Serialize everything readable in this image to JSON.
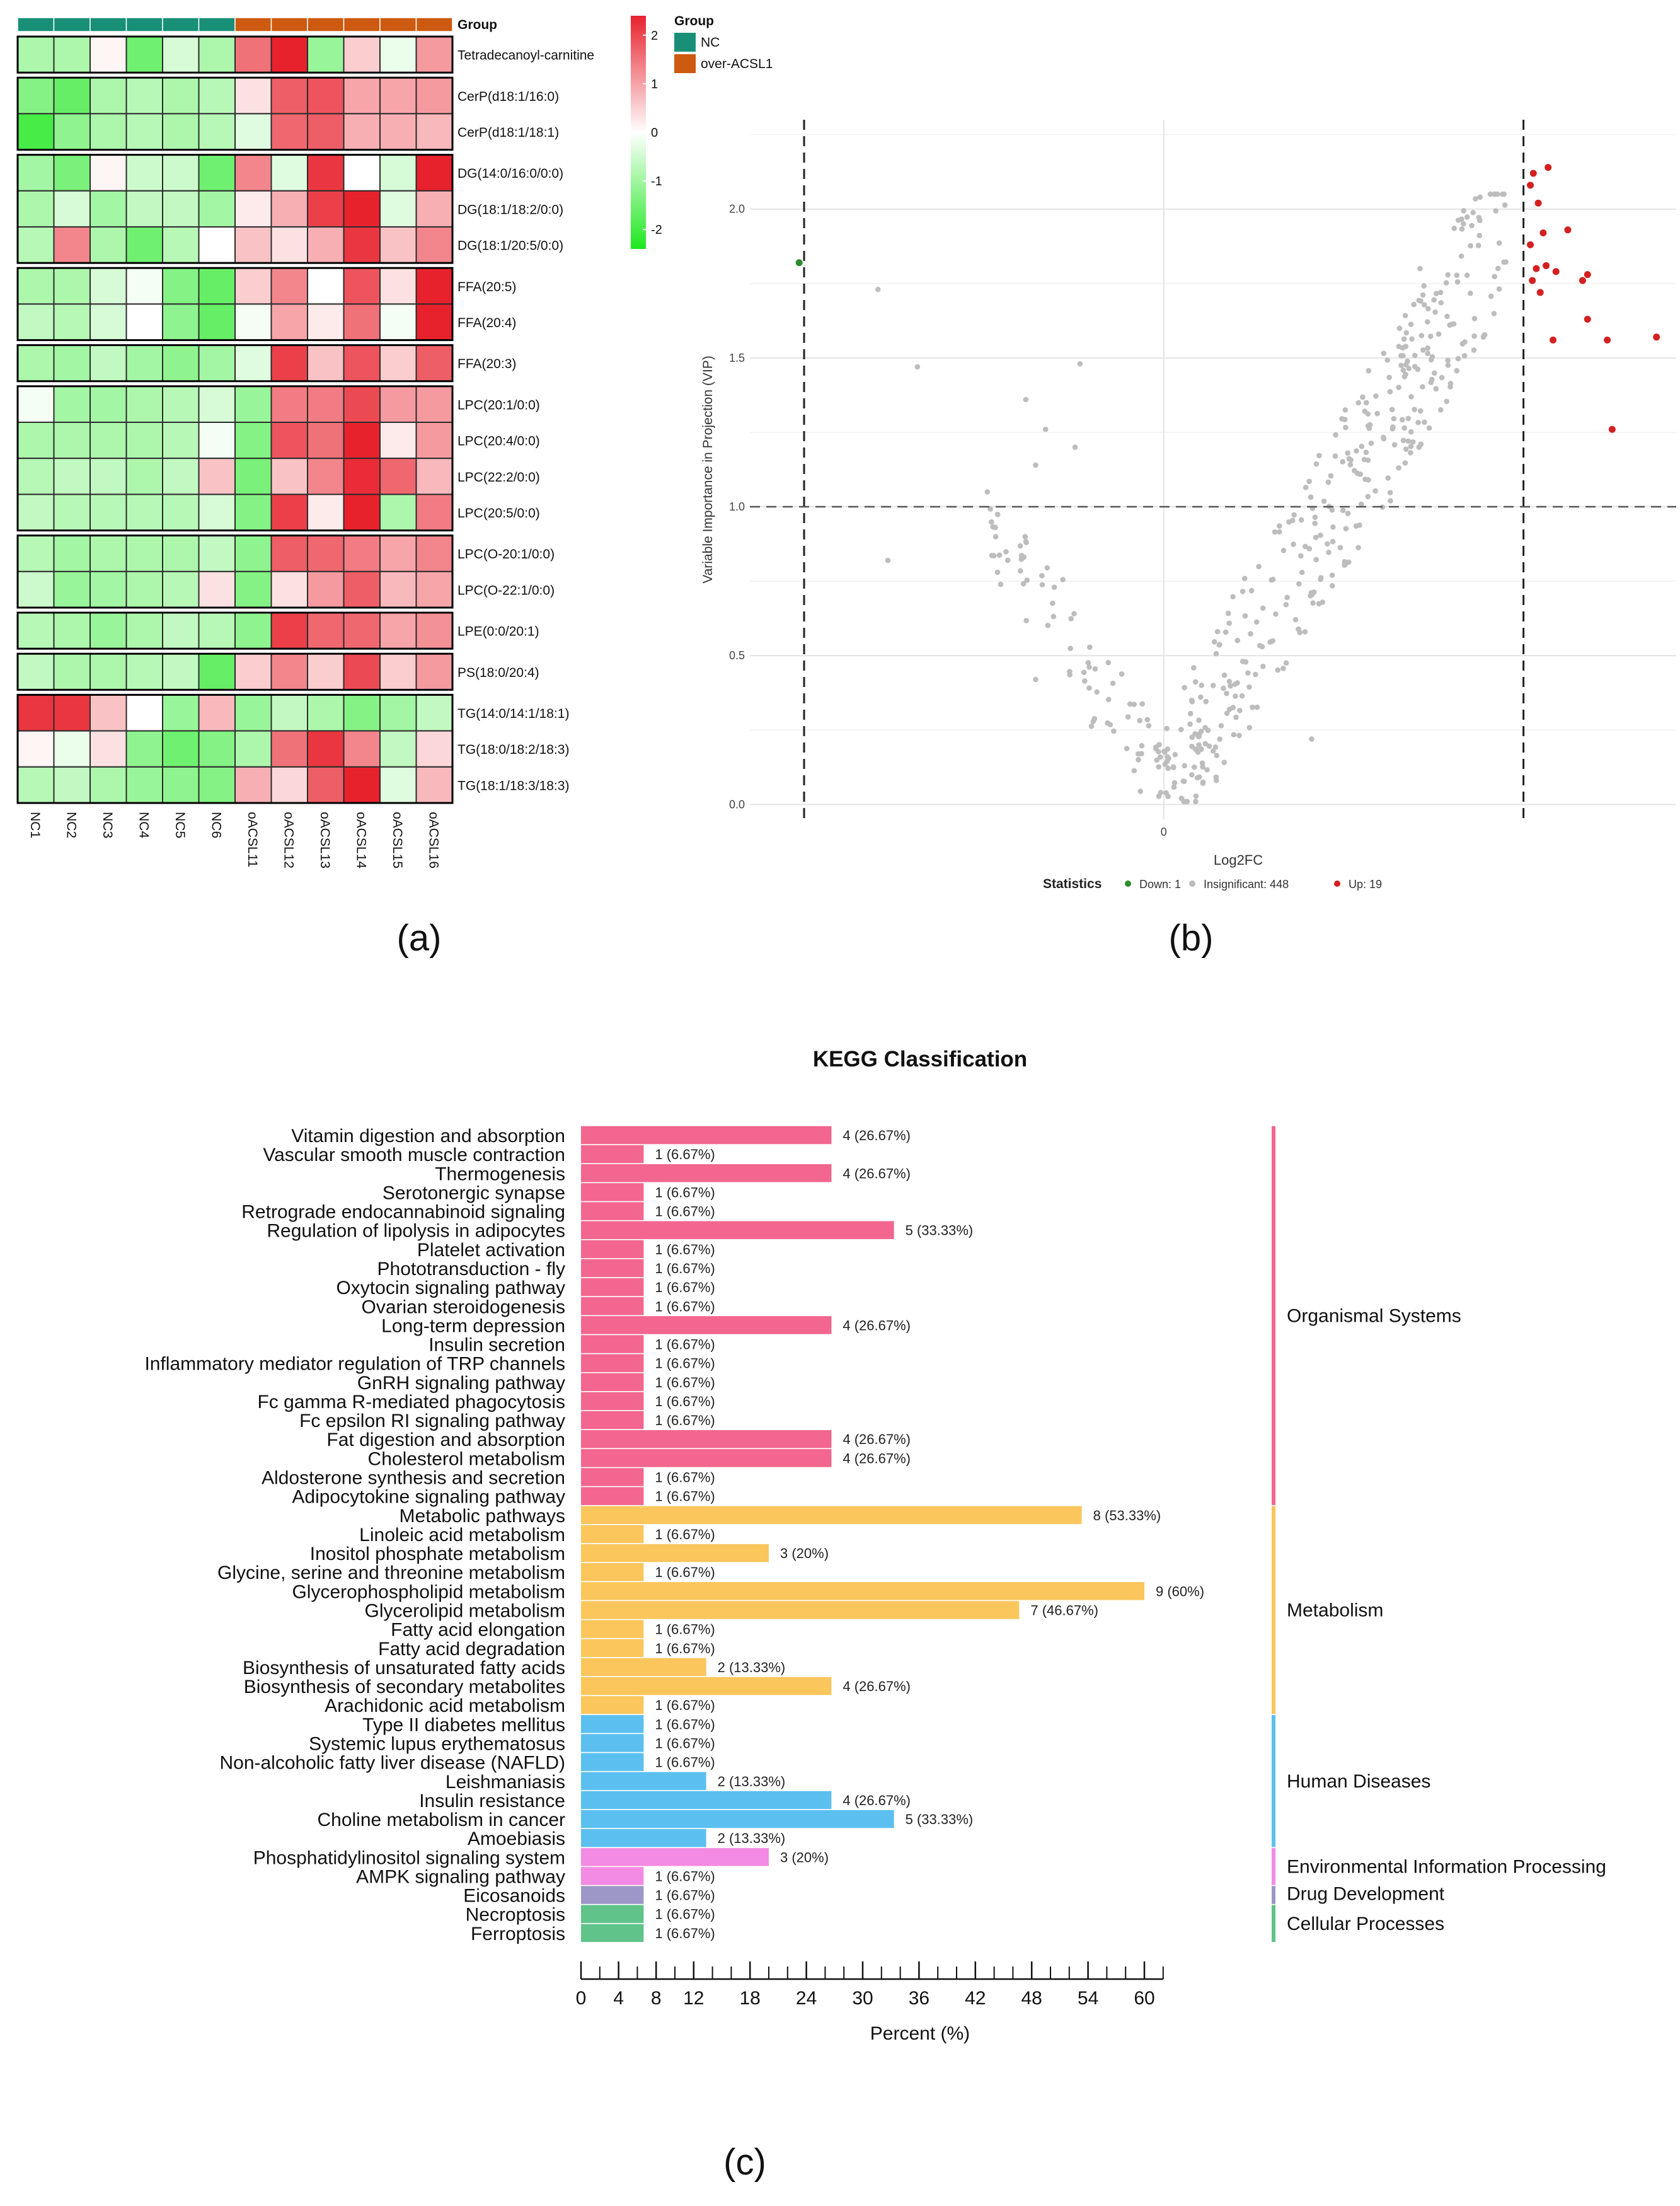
{
  "panel_labels": [
    "(a)",
    "(b)",
    "(c)"
  ],
  "chart_data": [
    {
      "type": "heatmap",
      "panel": "(a)",
      "group_header": "Group",
      "columns": [
        "NC1",
        "NC2",
        "NC3",
        "NC4",
        "NC5",
        "NC6",
        "oACSL11",
        "oACSL12",
        "oACSL13",
        "oACSL14",
        "oACSL15",
        "oACSL16"
      ],
      "column_groups": [
        "NC",
        "NC",
        "NC",
        "NC",
        "NC",
        "NC",
        "over-ACSL1",
        "over-ACSL1",
        "over-ACSL1",
        "over-ACSL1",
        "over-ACSL1",
        "over-ACSL1"
      ],
      "row_blocks": [
        1,
        2,
        3,
        2,
        1,
        4,
        2,
        1,
        1,
        3
      ],
      "rows": [
        {
          "label": "Tetradecanoyl-carnitine",
          "values": [
            -0.8,
            -0.8,
            0.1,
            -1.4,
            -0.4,
            -0.8,
            1.4,
            2.6,
            -1.0,
            0.5,
            -0.2,
            1.0
          ]
        },
        {
          "label": "CerP(d18:1/16:0)",
          "values": [
            -1.2,
            -1.5,
            -0.8,
            -0.7,
            -0.8,
            -0.7,
            0.3,
            1.6,
            1.7,
            0.9,
            0.9,
            1.0
          ]
        },
        {
          "label": "CerP(d18:1/18:1)",
          "values": [
            -1.8,
            -1.1,
            -0.8,
            -0.7,
            -0.8,
            -0.7,
            -0.3,
            1.5,
            1.6,
            0.8,
            0.8,
            0.7
          ]
        },
        {
          "label": "DG(14:0/16:0/0:0)",
          "values": [
            -0.9,
            -1.3,
            0.1,
            -0.5,
            -0.5,
            -1.4,
            1.2,
            -0.3,
            2.0,
            0.0,
            -0.4,
            2.2
          ]
        },
        {
          "label": "DG(18:1/18:2/0:0)",
          "values": [
            -0.8,
            -0.4,
            -0.9,
            -0.6,
            -0.6,
            -0.9,
            0.2,
            0.8,
            1.9,
            2.4,
            -0.3,
            0.8
          ]
        },
        {
          "label": "DG(18:1/20:5/0:0)",
          "values": [
            -0.7,
            1.2,
            -0.8,
            -1.4,
            -0.7,
            0.0,
            0.6,
            0.3,
            0.8,
            2.0,
            0.6,
            1.2
          ]
        },
        {
          "label": "FFA(20:5)",
          "values": [
            -0.8,
            -0.8,
            -0.4,
            -0.1,
            -1.2,
            -1.5,
            0.5,
            1.2,
            0.0,
            1.7,
            0.3,
            2.4
          ]
        },
        {
          "label": "FFA(20:4)",
          "values": [
            -0.6,
            -0.7,
            -0.4,
            0.0,
            -1.1,
            -1.5,
            -0.1,
            0.9,
            0.2,
            1.4,
            -0.1,
            2.4
          ]
        },
        {
          "label": "FFA(20:3)",
          "values": [
            -0.8,
            -0.9,
            -0.6,
            -0.9,
            -1.1,
            -0.9,
            -0.3,
            1.9,
            0.6,
            1.7,
            0.5,
            1.6
          ]
        },
        {
          "label": "LPC(20:1/0:0)",
          "values": [
            -0.1,
            -0.9,
            -0.9,
            -0.8,
            -0.7,
            -0.4,
            -1.0,
            1.3,
            1.3,
            1.8,
            1.0,
            1.0
          ]
        },
        {
          "label": "LPC(20:4/0:0)",
          "values": [
            -0.8,
            -0.8,
            -0.8,
            -0.8,
            -0.7,
            -0.1,
            -1.2,
            1.7,
            1.4,
            2.4,
            0.2,
            1.0
          ]
        },
        {
          "label": "LPC(22:2/0:0)",
          "values": [
            -0.7,
            -0.6,
            -0.6,
            -0.8,
            -0.6,
            0.6,
            -1.3,
            0.6,
            1.2,
            2.1,
            1.5,
            0.7
          ]
        },
        {
          "label": "LPC(20:5/0:0)",
          "values": [
            -0.6,
            -0.7,
            -0.7,
            -0.7,
            -0.7,
            -0.4,
            -1.2,
            1.9,
            0.2,
            2.3,
            -0.8,
            1.3
          ]
        },
        {
          "label": "LPC(O-20:1/0:0)",
          "values": [
            -0.7,
            -0.9,
            -0.8,
            -0.8,
            -0.8,
            -0.6,
            -1.1,
            1.6,
            1.5,
            1.3,
            0.9,
            1.2
          ]
        },
        {
          "label": "LPC(O-22:1/0:0)",
          "values": [
            -0.5,
            -1.0,
            -0.9,
            -0.8,
            -0.7,
            0.3,
            -1.2,
            0.3,
            1.0,
            1.6,
            0.7,
            0.9
          ]
        },
        {
          "label": "LPE(0:0/20:1)",
          "values": [
            -0.7,
            -0.8,
            -1.0,
            -0.8,
            -0.6,
            -0.7,
            -1.1,
            1.9,
            1.5,
            1.5,
            0.9,
            1.1
          ]
        },
        {
          "label": "PS(18:0/20:4)",
          "values": [
            -0.6,
            -0.8,
            -0.8,
            -0.7,
            -0.6,
            -1.5,
            0.5,
            1.2,
            0.5,
            1.8,
            0.5,
            1.0
          ]
        },
        {
          "label": "TG(14:0/14:1/18:1)",
          "values": [
            2.0,
            2.0,
            0.6,
            0.0,
            -1.0,
            0.7,
            -1.0,
            -0.6,
            -0.8,
            -1.2,
            -0.9,
            -0.6
          ]
        },
        {
          "label": "TG(18:0/18:2/18:3)",
          "values": [
            0.1,
            -0.2,
            0.3,
            -1.1,
            -1.4,
            -1.2,
            -0.8,
            1.4,
            2.0,
            1.2,
            -0.6,
            0.4
          ]
        },
        {
          "label": "TG(18:1/18:3/18:3)",
          "values": [
            -0.7,
            -0.6,
            -0.8,
            -1.0,
            -1.1,
            -1.2,
            0.8,
            0.4,
            1.6,
            2.4,
            -0.3,
            0.7
          ]
        }
      ],
      "colorbar": {
        "ticks": [
          2,
          1,
          0,
          -1,
          -2
        ],
        "low_color": "#1ee81e",
        "mid_color": "#ffffff",
        "high_color": "#e8222d"
      },
      "legend": {
        "title": "Group",
        "items": [
          {
            "label": "NC",
            "color": "#1a8f77"
          },
          {
            "label": "over-ACSL1",
            "color": "#cc5a10"
          }
        ]
      }
    },
    {
      "type": "scatter",
      "panel": "(b)",
      "xlabel": "Log2FC",
      "ylabel": "Variable Importance in Projection (VIP)",
      "x_ticks": [
        0
      ],
      "xlim": [
        -4.2,
        5.2
      ],
      "y_ticks": [
        0.0,
        0.5,
        1.0,
        1.5,
        2.0
      ],
      "ylim": [
        -0.05,
        2.3
      ],
      "threshold_lines": {
        "x": [
          -3.65,
          3.65
        ],
        "y": 1.0
      },
      "legend": {
        "title": "Statistics",
        "items": [
          {
            "label": "Down: 1",
            "color": "#2e8b2e"
          },
          {
            "label": "Insignificant: 448",
            "color": "#bbbbbb"
          },
          {
            "label": "Up: 19",
            "color": "#d42020"
          }
        ]
      },
      "series": [
        {
          "name": "Down",
          "color": "#2e8b2e",
          "points": [
            [
              -3.7,
              1.82
            ]
          ]
        },
        {
          "name": "Up",
          "color": "#d42020",
          "points": [
            [
              3.75,
              2.12
            ],
            [
              3.9,
              2.14
            ],
            [
              3.72,
              2.08
            ],
            [
              3.8,
              2.02
            ],
            [
              3.85,
              1.92
            ],
            [
              4.1,
              1.93
            ],
            [
              3.72,
              1.88
            ],
            [
              3.78,
              1.8
            ],
            [
              3.88,
              1.81
            ],
            [
              3.98,
              1.79
            ],
            [
              3.74,
              1.76
            ],
            [
              4.25,
              1.76
            ],
            [
              4.3,
              1.78
            ],
            [
              3.82,
              1.72
            ],
            [
              4.3,
              1.63
            ],
            [
              3.95,
              1.56
            ],
            [
              4.5,
              1.56
            ],
            [
              5.0,
              1.57
            ],
            [
              4.55,
              1.26
            ]
          ]
        }
      ],
      "insignificant_count": 448
    },
    {
      "type": "bar",
      "panel": "(c)",
      "orientation": "horizontal",
      "title": "KEGG Classification",
      "xlabel": "Percent (%)",
      "xlim": [
        0,
        62
      ],
      "x_ticks": [
        0,
        4,
        8,
        12,
        18,
        24,
        30,
        36,
        42,
        48,
        54,
        60
      ],
      "categories": [
        "Vitamin digestion and absorption",
        "Vascular smooth muscle contraction",
        "Thermogenesis",
        "Serotonergic synapse",
        "Retrograde endocannabinoid signaling",
        "Regulation of lipolysis in adipocytes",
        "Platelet activation",
        "Phototransduction - fly",
        "Oxytocin signaling pathway",
        "Ovarian steroidogenesis",
        "Long-term depression",
        "Insulin secretion",
        "Inflammatory mediator regulation of TRP channels",
        "GnRH signaling pathway",
        "Fc gamma R-mediated phagocytosis",
        "Fc epsilon RI signaling pathway",
        "Fat digestion and absorption",
        "Cholesterol metabolism",
        "Aldosterone synthesis and secretion",
        "Adipocytokine signaling pathway",
        "Metabolic pathways",
        "Linoleic acid metabolism",
        "Inositol phosphate metabolism",
        "Glycine, serine and threonine metabolism",
        "Glycerophospholipid metabolism",
        "Glycerolipid metabolism",
        "Fatty acid elongation",
        "Fatty acid degradation",
        "Biosynthesis of unsaturated fatty acids",
        "Biosynthesis of secondary metabolites",
        "Arachidonic acid metabolism",
        "Type II diabetes mellitus",
        "Systemic lupus erythematosus",
        "Non-alcoholic fatty liver disease (NAFLD)",
        "Leishmaniasis",
        "Insulin resistance",
        "Choline metabolism in cancer",
        "Amoebiasis",
        "Phosphatidylinositol signaling system",
        "AMPK signaling pathway",
        "Eicosanoids",
        "Necroptosis",
        "Ferroptosis"
      ],
      "values": [
        26.67,
        6.67,
        26.67,
        6.67,
        6.67,
        33.33,
        6.67,
        6.67,
        6.67,
        6.67,
        26.67,
        6.67,
        6.67,
        6.67,
        6.67,
        6.67,
        26.67,
        26.67,
        6.67,
        6.67,
        53.33,
        6.67,
        20,
        6.67,
        60,
        46.67,
        6.67,
        6.67,
        13.33,
        26.67,
        6.67,
        6.67,
        6.67,
        6.67,
        13.33,
        26.67,
        33.33,
        13.33,
        20,
        6.67,
        6.67,
        6.67,
        6.67
      ],
      "data_labels": [
        "4 (26.67%)",
        "1 (6.67%)",
        "4 (26.67%)",
        "1 (6.67%)",
        "1 (6.67%)",
        "5 (33.33%)",
        "1 (6.67%)",
        "1 (6.67%)",
        "1 (6.67%)",
        "1 (6.67%)",
        "4 (26.67%)",
        "1 (6.67%)",
        "1 (6.67%)",
        "1 (6.67%)",
        "1 (6.67%)",
        "1 (6.67%)",
        "4 (26.67%)",
        "4 (26.67%)",
        "1 (6.67%)",
        "1 (6.67%)",
        "8 (53.33%)",
        "1 (6.67%)",
        "3 (20%)",
        "1 (6.67%)",
        "9 (60%)",
        "7 (46.67%)",
        "1 (6.67%)",
        "1 (6.67%)",
        "2 (13.33%)",
        "4 (26.67%)",
        "1 (6.67%)",
        "1 (6.67%)",
        "1 (6.67%)",
        "1 (6.67%)",
        "2 (13.33%)",
        "4 (26.67%)",
        "5 (33.33%)",
        "2 (13.33%)",
        "3 (20%)",
        "1 (6.67%)",
        "1 (6.67%)",
        "1 (6.67%)",
        "1 (6.67%)"
      ],
      "groups": [
        {
          "name": "Organismal Systems",
          "color": "#f2668f",
          "start": 0,
          "count": 20
        },
        {
          "name": "Metabolism",
          "color": "#fbc65c",
          "start": 20,
          "count": 11
        },
        {
          "name": "Human Diseases",
          "color": "#5bc0f0",
          "start": 31,
          "count": 7
        },
        {
          "name": "Environmental Information Processing",
          "color": "#f38ae3",
          "start": 38,
          "count": 2
        },
        {
          "name": "Drug Development",
          "color": "#9d97c7",
          "start": 40,
          "count": 1
        },
        {
          "name": "Cellular Processes",
          "color": "#5fc38a",
          "start": 41,
          "count": 2
        }
      ]
    }
  ]
}
